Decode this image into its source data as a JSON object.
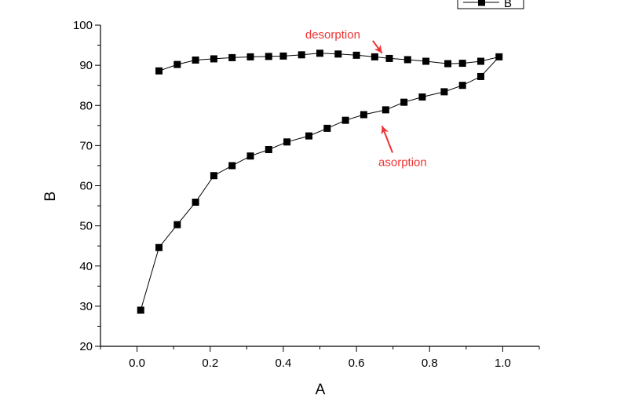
{
  "chart_data": {
    "type": "line",
    "xlabel": "A",
    "ylabel": "B",
    "xlim": [
      -0.1,
      1.1
    ],
    "ylim": [
      20,
      100
    ],
    "x_ticks": [
      "0.0",
      "0.2",
      "0.4",
      "0.6",
      "0.8",
      "1.0"
    ],
    "y_ticks": [
      "20",
      "30",
      "40",
      "50",
      "60",
      "70",
      "80",
      "90",
      "100"
    ],
    "grid": false,
    "legend": {
      "placement": "top-right",
      "entries": [
        "B"
      ]
    },
    "series": [
      {
        "name": "B",
        "marker": "square",
        "color": "#000000",
        "x": [
          0.01,
          0.06,
          0.11,
          0.16,
          0.21,
          0.26,
          0.31,
          0.36,
          0.41,
          0.47,
          0.52,
          0.57,
          0.62,
          0.68,
          0.73,
          0.78,
          0.84,
          0.89,
          0.94,
          0.99,
          0.94,
          0.89,
          0.85,
          0.79,
          0.74,
          0.69,
          0.65,
          0.6,
          0.55,
          0.5,
          0.45,
          0.4,
          0.36,
          0.31,
          0.26,
          0.21,
          0.16,
          0.11,
          0.06
        ],
        "y": [
          29.0,
          44.6,
          50.3,
          55.9,
          62.5,
          65.0,
          67.4,
          69.0,
          70.9,
          72.4,
          74.3,
          76.3,
          77.7,
          78.9,
          80.8,
          82.1,
          83.4,
          85.0,
          87.2,
          92.1,
          91.0,
          90.5,
          90.4,
          91.0,
          91.4,
          91.7,
          92.1,
          92.5,
          92.8,
          93.0,
          92.6,
          92.3,
          92.2,
          92.1,
          91.9,
          91.6,
          91.3,
          90.2,
          88.6
        ]
      }
    ],
    "annotations": [
      {
        "text": "desorption",
        "color": "#ee3333",
        "x": 0.46,
        "y": 96.7,
        "arrow_to": [
          0.67,
          93.0
        ]
      },
      {
        "text": "asorption",
        "color": "#ee3333",
        "x": 0.66,
        "y": 64.9,
        "arrow_to": [
          0.67,
          74.9
        ]
      }
    ]
  }
}
